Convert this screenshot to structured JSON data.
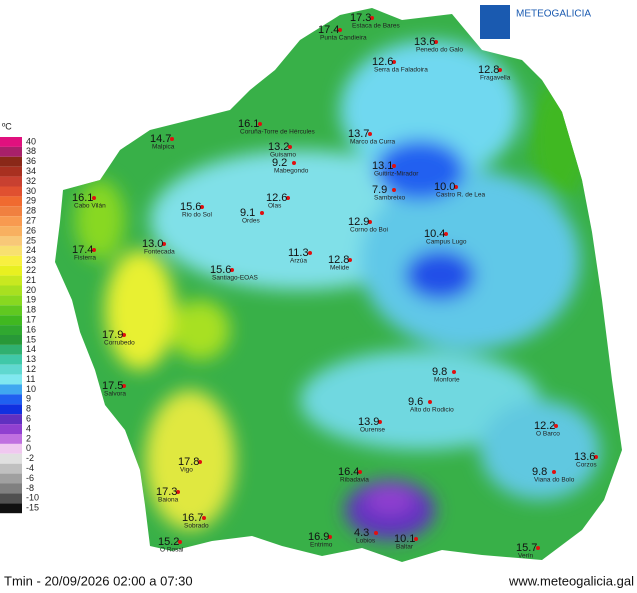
{
  "logo": "METEOGALICIA",
  "legend": {
    "unit": "ºC",
    "entries": [
      {
        "label": "40",
        "color": "#e0107e"
      },
      {
        "label": "38",
        "color": "#a8206a"
      },
      {
        "label": "36",
        "color": "#8a2818"
      },
      {
        "label": "34",
        "color": "#a83020"
      },
      {
        "label": "32",
        "color": "#c84030"
      },
      {
        "label": "30",
        "color": "#e05030"
      },
      {
        "label": "29",
        "color": "#f06a30"
      },
      {
        "label": "28",
        "color": "#f08040"
      },
      {
        "label": "27",
        "color": "#f89a50"
      },
      {
        "label": "26",
        "color": "#f8b060"
      },
      {
        "label": "25",
        "color": "#f8c878"
      },
      {
        "label": "24",
        "color": "#f8e070"
      },
      {
        "label": "23",
        "color": "#f8f040"
      },
      {
        "label": "22",
        "color": "#e8f020"
      },
      {
        "label": "21",
        "color": "#c8e820"
      },
      {
        "label": "20",
        "color": "#a8e020"
      },
      {
        "label": "19",
        "color": "#88d820"
      },
      {
        "label": "18",
        "color": "#60c820"
      },
      {
        "label": "17",
        "color": "#40b820"
      },
      {
        "label": "16",
        "color": "#30a830"
      },
      {
        "label": "15",
        "color": "#289838"
      },
      {
        "label": "14",
        "color": "#30b070"
      },
      {
        "label": "13",
        "color": "#40c8a8"
      },
      {
        "label": "12",
        "color": "#60d8d0"
      },
      {
        "label": "11",
        "color": "#80e8f0"
      },
      {
        "label": "10",
        "color": "#40a8f0"
      },
      {
        "label": "9",
        "color": "#2060f0"
      },
      {
        "label": "8",
        "color": "#1030e0"
      },
      {
        "label": "6",
        "color": "#6030c0"
      },
      {
        "label": "4",
        "color": "#9040d0"
      },
      {
        "label": "2",
        "color": "#c070e0"
      },
      {
        "label": "0",
        "color": "#f0c8f0"
      },
      {
        "label": "-2",
        "color": "#e0e0e0"
      },
      {
        "label": "-4",
        "color": "#c0c0c0"
      },
      {
        "label": "-6",
        "color": "#a0a0a0"
      },
      {
        "label": "-8",
        "color": "#808080"
      },
      {
        "label": "-10",
        "color": "#505050"
      },
      {
        "label": "-15",
        "color": "#101010"
      }
    ]
  },
  "stations": [
    {
      "name": "Punta Candieira",
      "temp": "17.4"
    },
    {
      "name": "Estaca de Bares",
      "temp": "17.3"
    },
    {
      "name": "Serra da Faladoira",
      "temp": "12.6"
    },
    {
      "name": "Penedo do Galo",
      "temp": "13.6"
    },
    {
      "name": "Fragavella",
      "temp": "12.8"
    },
    {
      "name": "Coruña-Torre de Hércules",
      "temp": "16.1"
    },
    {
      "name": "Malpica",
      "temp": "14.7"
    },
    {
      "name": "Guisamo",
      "temp": "13.2"
    },
    {
      "name": "Mabegondo",
      "temp": "9.2"
    },
    {
      "name": "Marco da Curra",
      "temp": "13.7"
    },
    {
      "name": "Guitiriz-Mirador",
      "temp": "13.1"
    },
    {
      "name": "Sambreixo",
      "temp": "7.9"
    },
    {
      "name": "Castro R. de Lea",
      "temp": "10.0"
    },
    {
      "name": "Cabo Vilán",
      "temp": "16.1"
    },
    {
      "name": "Rio do Sol",
      "temp": "15.6"
    },
    {
      "name": "Ordes",
      "temp": "9.1"
    },
    {
      "name": "Olas",
      "temp": "12.6"
    },
    {
      "name": "Corno do Boi",
      "temp": "12.9"
    },
    {
      "name": "Campus Lugo",
      "temp": "10.4"
    },
    {
      "name": "Fisterra",
      "temp": "17.4"
    },
    {
      "name": "Fontecada",
      "temp": "13.0"
    },
    {
      "name": "Arzúa",
      "temp": "11.3"
    },
    {
      "name": "Melide",
      "temp": "12.8"
    },
    {
      "name": "Santiago-EOAS",
      "temp": "15.6"
    },
    {
      "name": "Corrubedo",
      "temp": "17.9"
    },
    {
      "name": "Salvora",
      "temp": "17.5"
    },
    {
      "name": "Monforte",
      "temp": "9.8"
    },
    {
      "name": "Alto do Rodicio",
      "temp": "9.6"
    },
    {
      "name": "Ourense",
      "temp": "13.9"
    },
    {
      "name": "Ribadavia",
      "temp": "16.4"
    },
    {
      "name": "Vigo",
      "temp": "17.8"
    },
    {
      "name": "Baiona",
      "temp": "17.3"
    },
    {
      "name": "Sobrado",
      "temp": "16.7"
    },
    {
      "name": "O Rosal",
      "temp": "15.2"
    },
    {
      "name": "Entrimo",
      "temp": "16.9"
    },
    {
      "name": "Lobios",
      "temp": "4.3"
    },
    {
      "name": "Baltar",
      "temp": "10.1"
    },
    {
      "name": "Verín",
      "temp": "15.7"
    },
    {
      "name": "O Barco",
      "temp": "12.2"
    },
    {
      "name": "Viana do Bolo",
      "temp": "9.8"
    },
    {
      "name": "Corzos",
      "temp": "13.6"
    }
  ],
  "footer": {
    "caption": "Tmin - 20/09/2026 02:00 a 07:30",
    "url": "www.meteogalicia.gal"
  }
}
